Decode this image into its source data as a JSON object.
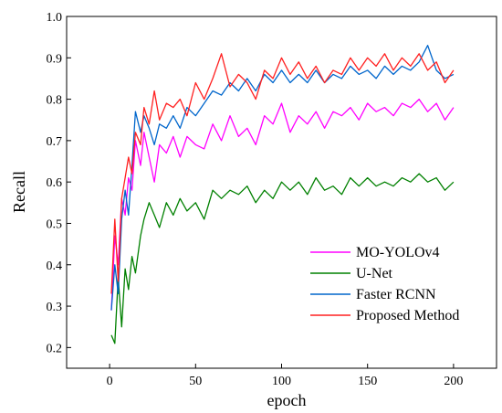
{
  "chart_data": {
    "type": "line",
    "title": "",
    "xlabel": "epoch",
    "ylabel": "Recall",
    "xlim": [
      -25,
      225
    ],
    "ylim": [
      0.15,
      1.0
    ],
    "x_ticks": [
      0,
      50,
      100,
      150,
      200
    ],
    "y_ticks": [
      0.2,
      0.3,
      0.4,
      0.5,
      0.6,
      0.7,
      0.8,
      0.9,
      1.0
    ],
    "grid": false,
    "legend_position": "bottom-right",
    "series": [
      {
        "name": "MO-YOLOv4",
        "color": "#ff00ff",
        "x": [
          1,
          3,
          5,
          7,
          9,
          11,
          13,
          15,
          18,
          20,
          23,
          26,
          29,
          33,
          37,
          41,
          45,
          50,
          55,
          60,
          65,
          70,
          75,
          80,
          85,
          90,
          95,
          100,
          105,
          110,
          115,
          120,
          125,
          130,
          135,
          140,
          145,
          150,
          155,
          160,
          165,
          170,
          175,
          180,
          185,
          190,
          195,
          200
        ],
        "y": [
          0.29,
          0.47,
          0.4,
          0.56,
          0.52,
          0.61,
          0.58,
          0.7,
          0.64,
          0.72,
          0.66,
          0.6,
          0.69,
          0.67,
          0.71,
          0.66,
          0.71,
          0.69,
          0.68,
          0.74,
          0.7,
          0.76,
          0.71,
          0.73,
          0.69,
          0.76,
          0.74,
          0.79,
          0.72,
          0.76,
          0.74,
          0.77,
          0.73,
          0.77,
          0.76,
          0.78,
          0.75,
          0.79,
          0.77,
          0.78,
          0.76,
          0.79,
          0.78,
          0.8,
          0.77,
          0.79,
          0.75,
          0.78
        ]
      },
      {
        "name": "U-Net",
        "color": "#008000",
        "x": [
          1,
          3,
          5,
          7,
          9,
          11,
          13,
          15,
          18,
          20,
          23,
          26,
          29,
          33,
          37,
          41,
          45,
          50,
          55,
          60,
          65,
          70,
          75,
          80,
          85,
          90,
          95,
          100,
          105,
          110,
          115,
          120,
          125,
          130,
          135,
          140,
          145,
          150,
          155,
          160,
          165,
          170,
          175,
          180,
          185,
          190,
          195,
          200
        ],
        "y": [
          0.23,
          0.21,
          0.37,
          0.25,
          0.39,
          0.34,
          0.42,
          0.38,
          0.47,
          0.51,
          0.55,
          0.52,
          0.49,
          0.55,
          0.52,
          0.56,
          0.53,
          0.55,
          0.51,
          0.58,
          0.56,
          0.58,
          0.57,
          0.59,
          0.55,
          0.58,
          0.56,
          0.6,
          0.58,
          0.6,
          0.57,
          0.61,
          0.58,
          0.59,
          0.57,
          0.61,
          0.59,
          0.61,
          0.59,
          0.6,
          0.59,
          0.61,
          0.6,
          0.62,
          0.6,
          0.61,
          0.58,
          0.6
        ]
      },
      {
        "name": "Faster RCNN",
        "color": "#0066cc",
        "x": [
          1,
          3,
          5,
          7,
          9,
          11,
          13,
          15,
          18,
          20,
          23,
          26,
          29,
          33,
          37,
          41,
          45,
          50,
          55,
          60,
          65,
          70,
          75,
          80,
          85,
          90,
          95,
          100,
          105,
          110,
          115,
          120,
          125,
          130,
          135,
          140,
          145,
          150,
          155,
          160,
          165,
          170,
          175,
          180,
          185,
          190,
          195,
          200
        ],
        "y": [
          0.29,
          0.4,
          0.33,
          0.51,
          0.58,
          0.52,
          0.64,
          0.77,
          0.72,
          0.76,
          0.73,
          0.69,
          0.74,
          0.73,
          0.76,
          0.73,
          0.78,
          0.76,
          0.79,
          0.82,
          0.81,
          0.84,
          0.82,
          0.85,
          0.82,
          0.86,
          0.84,
          0.87,
          0.84,
          0.86,
          0.84,
          0.87,
          0.84,
          0.86,
          0.85,
          0.88,
          0.86,
          0.87,
          0.85,
          0.88,
          0.86,
          0.88,
          0.87,
          0.89,
          0.93,
          0.87,
          0.85,
          0.86
        ]
      },
      {
        "name": "Proposed Method",
        "color": "#ff2020",
        "x": [
          1,
          3,
          5,
          7,
          9,
          11,
          13,
          15,
          18,
          20,
          23,
          26,
          29,
          33,
          37,
          41,
          45,
          50,
          55,
          60,
          65,
          70,
          75,
          80,
          85,
          90,
          95,
          100,
          105,
          110,
          115,
          120,
          125,
          130,
          135,
          140,
          145,
          150,
          155,
          160,
          165,
          170,
          175,
          180,
          185,
          190,
          195,
          200
        ],
        "y": [
          0.33,
          0.51,
          0.36,
          0.56,
          0.61,
          0.66,
          0.62,
          0.72,
          0.69,
          0.78,
          0.74,
          0.82,
          0.75,
          0.79,
          0.78,
          0.8,
          0.76,
          0.84,
          0.8,
          0.85,
          0.91,
          0.83,
          0.86,
          0.84,
          0.8,
          0.87,
          0.85,
          0.9,
          0.86,
          0.89,
          0.85,
          0.88,
          0.84,
          0.87,
          0.86,
          0.9,
          0.87,
          0.9,
          0.88,
          0.91,
          0.87,
          0.9,
          0.88,
          0.91,
          0.87,
          0.89,
          0.84,
          0.87
        ]
      }
    ]
  }
}
